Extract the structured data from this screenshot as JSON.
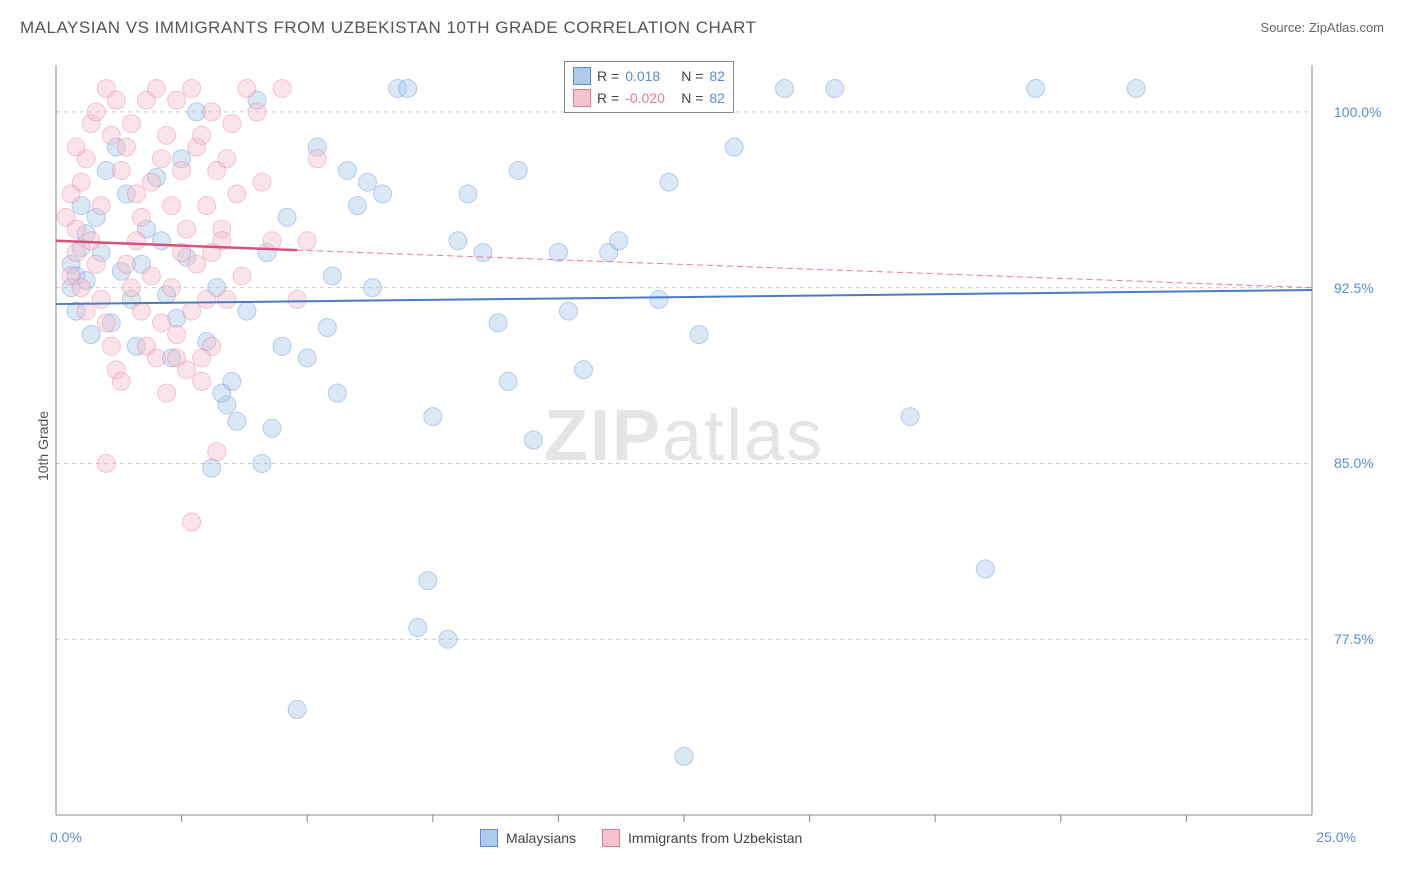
{
  "title": "MALAYSIAN VS IMMIGRANTS FROM UZBEKISTAN 10TH GRADE CORRELATION CHART",
  "source": "Source: ZipAtlas.com",
  "ylabel": "10th Grade",
  "watermark_a": "ZIP",
  "watermark_b": "atlas",
  "chart": {
    "type": "scatter",
    "xlim": [
      0,
      25
    ],
    "ylim": [
      70,
      102
    ],
    "yticks": [
      77.5,
      85.0,
      92.5,
      100.0
    ],
    "ytick_labels": [
      "77.5%",
      "85.0%",
      "92.5%",
      "100.0%"
    ],
    "xticks_minor": [
      2.5,
      5,
      7.5,
      10,
      12.5,
      15,
      17.5,
      20,
      22.5
    ],
    "x_left_label": "0.0%",
    "x_right_label": "25.0%",
    "background_color": "#ffffff",
    "grid_color": "#cccccc",
    "axis_color": "#888888",
    "text_color": "#555555",
    "tick_label_color": "#5b8dd6",
    "marker_radius": 9,
    "marker_opacity": 0.45,
    "series": [
      {
        "name": "Malaysians",
        "color_fill": "#aecbeb",
        "color_stroke": "#5b8dd6",
        "R": "0.018",
        "N": "82",
        "trend": {
          "y_start": 91.8,
          "y_end": 92.4,
          "width": 2,
          "dash": "none",
          "color": "#4a7bc8"
        },
        "points": [
          [
            0.3,
            93.5
          ],
          [
            0.5,
            94.2
          ],
          [
            0.4,
            93.0
          ],
          [
            0.6,
            94.8
          ],
          [
            0.8,
            95.5
          ],
          [
            0.5,
            96.0
          ],
          [
            0.4,
            91.5
          ],
          [
            0.7,
            90.5
          ],
          [
            0.3,
            92.5
          ],
          [
            0.6,
            92.8
          ],
          [
            1.2,
            98.5
          ],
          [
            1.0,
            97.5
          ],
          [
            0.9,
            94.0
          ],
          [
            1.3,
            93.2
          ],
          [
            1.5,
            92.0
          ],
          [
            1.1,
            91.0
          ],
          [
            1.4,
            96.5
          ],
          [
            1.8,
            95.0
          ],
          [
            2.0,
            97.2
          ],
          [
            1.7,
            93.5
          ],
          [
            2.2,
            92.2
          ],
          [
            1.6,
            90.0
          ],
          [
            2.4,
            91.2
          ],
          [
            2.1,
            94.5
          ],
          [
            2.5,
            98.0
          ],
          [
            2.8,
            100.0
          ],
          [
            2.6,
            93.8
          ],
          [
            2.3,
            89.5
          ],
          [
            3.0,
            90.2
          ],
          [
            3.2,
            92.5
          ],
          [
            3.5,
            88.5
          ],
          [
            3.4,
            87.5
          ],
          [
            3.8,
            91.5
          ],
          [
            3.1,
            84.8
          ],
          [
            3.3,
            88.0
          ],
          [
            4.0,
            100.5
          ],
          [
            4.2,
            94.0
          ],
          [
            4.5,
            90.0
          ],
          [
            4.3,
            86.5
          ],
          [
            4.1,
            85.0
          ],
          [
            4.8,
            74.5
          ],
          [
            4.6,
            95.5
          ],
          [
            5.0,
            89.5
          ],
          [
            5.2,
            98.5
          ],
          [
            5.5,
            93.0
          ],
          [
            5.8,
            97.5
          ],
          [
            5.4,
            90.8
          ],
          [
            6.0,
            96.0
          ],
          [
            6.2,
            97.0
          ],
          [
            6.5,
            96.5
          ],
          [
            6.8,
            101.0
          ],
          [
            6.3,
            92.5
          ],
          [
            7.0,
            101.0
          ],
          [
            7.2,
            78.0
          ],
          [
            7.5,
            87.0
          ],
          [
            7.8,
            77.5
          ],
          [
            7.4,
            80.0
          ],
          [
            8.0,
            94.5
          ],
          [
            8.2,
            96.5
          ],
          [
            8.5,
            94.0
          ],
          [
            8.8,
            91.0
          ],
          [
            9.0,
            88.5
          ],
          [
            9.2,
            97.5
          ],
          [
            9.5,
            86.0
          ],
          [
            10.0,
            94.0
          ],
          [
            10.2,
            91.5
          ],
          [
            10.5,
            89.0
          ],
          [
            11.0,
            94.0
          ],
          [
            11.2,
            94.5
          ],
          [
            12.0,
            92.0
          ],
          [
            12.2,
            97.0
          ],
          [
            12.5,
            72.5
          ],
          [
            12.8,
            90.5
          ],
          [
            13.5,
            98.5
          ],
          [
            14.5,
            101.0
          ],
          [
            15.5,
            101.0
          ],
          [
            17.0,
            87.0
          ],
          [
            18.5,
            80.5
          ],
          [
            19.5,
            101.0
          ],
          [
            21.5,
            101.0
          ],
          [
            3.6,
            86.8
          ],
          [
            5.6,
            88.0
          ]
        ]
      },
      {
        "name": "Immigrants from Uzbekistan",
        "color_fill": "#f5c2d0",
        "color_stroke": "#e77b9a",
        "R": "-0.020",
        "N": "82",
        "trend": {
          "y_start": 94.5,
          "y_end": 92.5,
          "width": 1,
          "dash": "6,4",
          "color": "#e77b9a"
        },
        "trend_solid": {
          "x_end": 4.8,
          "y_start": 94.5,
          "y_end": 94.1,
          "width": 2.5,
          "color": "#d6527a"
        },
        "points": [
          [
            0.2,
            95.5
          ],
          [
            0.3,
            96.5
          ],
          [
            0.4,
            94.0
          ],
          [
            0.5,
            97.0
          ],
          [
            0.3,
            93.0
          ],
          [
            0.6,
            98.0
          ],
          [
            0.4,
            95.0
          ],
          [
            0.7,
            99.5
          ],
          [
            0.5,
            92.5
          ],
          [
            0.8,
            100.0
          ],
          [
            0.6,
            91.5
          ],
          [
            0.9,
            96.0
          ],
          [
            0.4,
            98.5
          ],
          [
            1.0,
            101.0
          ],
          [
            0.7,
            94.5
          ],
          [
            1.1,
            99.0
          ],
          [
            0.8,
            93.5
          ],
          [
            1.2,
            100.5
          ],
          [
            0.9,
            92.0
          ],
          [
            1.3,
            97.5
          ],
          [
            1.0,
            91.0
          ],
          [
            1.4,
            98.5
          ],
          [
            1.1,
            90.0
          ],
          [
            1.5,
            99.5
          ],
          [
            1.2,
            89.0
          ],
          [
            1.6,
            96.5
          ],
          [
            1.3,
            88.5
          ],
          [
            1.7,
            95.5
          ],
          [
            1.4,
            93.5
          ],
          [
            1.8,
            100.5
          ],
          [
            1.5,
            92.5
          ],
          [
            1.9,
            97.0
          ],
          [
            1.6,
            94.5
          ],
          [
            2.0,
            101.0
          ],
          [
            1.7,
            91.5
          ],
          [
            2.1,
            98.0
          ],
          [
            1.8,
            90.0
          ],
          [
            2.2,
            99.0
          ],
          [
            1.9,
            93.0
          ],
          [
            2.3,
            96.0
          ],
          [
            2.0,
            89.5
          ],
          [
            2.4,
            100.5
          ],
          [
            2.1,
            91.0
          ],
          [
            2.5,
            97.5
          ],
          [
            2.2,
            88.0
          ],
          [
            2.6,
            95.0
          ],
          [
            2.3,
            92.5
          ],
          [
            2.7,
            101.0
          ],
          [
            2.4,
            90.5
          ],
          [
            2.8,
            98.5
          ],
          [
            2.5,
            94.0
          ],
          [
            2.9,
            99.0
          ],
          [
            2.6,
            89.0
          ],
          [
            3.0,
            96.0
          ],
          [
            2.7,
            91.5
          ],
          [
            3.1,
            100.0
          ],
          [
            2.8,
            93.5
          ],
          [
            3.2,
            97.5
          ],
          [
            2.9,
            88.5
          ],
          [
            3.3,
            95.0
          ],
          [
            3.0,
            92.0
          ],
          [
            3.4,
            98.0
          ],
          [
            3.1,
            90.0
          ],
          [
            3.5,
            99.5
          ],
          [
            3.2,
            85.5
          ],
          [
            3.6,
            96.5
          ],
          [
            3.3,
            94.5
          ],
          [
            3.7,
            93.0
          ],
          [
            3.8,
            101.0
          ],
          [
            4.0,
            100.0
          ],
          [
            4.1,
            97.0
          ],
          [
            4.3,
            94.5
          ],
          [
            4.5,
            101.0
          ],
          [
            4.8,
            92.0
          ],
          [
            5.0,
            94.5
          ],
          [
            5.2,
            98.0
          ],
          [
            2.7,
            82.5
          ],
          [
            1.0,
            85.0
          ],
          [
            2.4,
            89.5
          ],
          [
            2.9,
            89.5
          ],
          [
            3.1,
            94.0
          ],
          [
            3.4,
            92.0
          ]
        ]
      }
    ]
  },
  "legend_top": {
    "R_label": "R =",
    "N_label": "N ="
  },
  "legend_bottom": {
    "series1": "Malaysians",
    "series2": "Immigrants from Uzbekistan"
  }
}
